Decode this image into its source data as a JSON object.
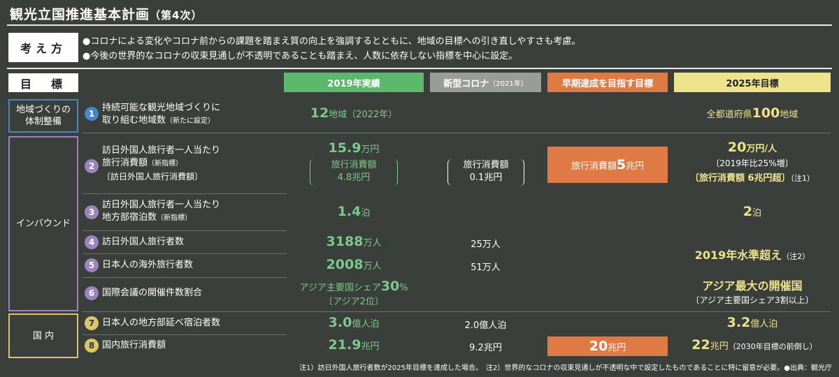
{
  "title": "観光立国推進基本計画",
  "title_suffix": "（第4次）",
  "policy": {
    "label": "考え方",
    "lines": [
      "●コロナによる変化やコロナ前からの課題を踏まえ質の向上を強調するとともに、地域の目標への引き直しやすさも考慮。",
      "●今後の世界的なコロナの収束見通しが不透明であることも踏まえ、人数に依存しない指標を中心に設定。"
    ]
  },
  "goals_label": "目　標",
  "headers": {
    "actual2019": "2019年実績",
    "corona_main": "新型コロナ",
    "corona_sub": "（2021年）",
    "early": "早期達成を目指す目標",
    "target2025": "2025年目標"
  },
  "categories": {
    "chiiki_line1": "地域づくりの",
    "chiiki_line2": "体制整備",
    "inbound": "インバウンド",
    "kokunai": "国 内"
  },
  "rows": {
    "r1": {
      "num": "1",
      "label1": "持続可能な観光地域づくりに",
      "label2": "取り組む地域数",
      "label2_small": "（新たに設定）",
      "v2019_big": "12",
      "v2019_unit": "地域（2022年）",
      "t2025_pre": "全都道府県",
      "t2025_big": "100",
      "t2025_unit": "地域"
    },
    "r2": {
      "num": "2",
      "label1": "訪日外国人旅行者一人当たり",
      "label2": "旅行消費額",
      "label2_small": "（新指標）",
      "label3": "〔訪日外国人旅行消費額〕",
      "v2019_big": "15.9",
      "v2019_unit": "万円",
      "v2019_sub1": "旅行消費額",
      "v2019_sub2": "4.8兆円",
      "corona_sub1": "旅行消費額",
      "corona_sub2": "0.1兆円",
      "early_pre": "旅行消費額",
      "early_big": "5",
      "early_unit": "兆円",
      "t2025_big": "20",
      "t2025_unit": "万円/人",
      "t2025_sub1": "〔2019年比25%増〕",
      "t2025_sub2": "〔旅行消費額 6兆円超〕",
      "t2025_note": "（注1）"
    },
    "r3": {
      "num": "3",
      "label1": "訪日外国人旅行者一人当たり",
      "label2": "地方部宿泊数",
      "label2_small": "（新指標）",
      "v2019_big": "1.4",
      "v2019_unit": "泊",
      "t2025_big": "2",
      "t2025_unit": "泊"
    },
    "r4": {
      "num": "4",
      "label1": "訪日外国人旅行者数",
      "v2019_big": "3188",
      "v2019_unit": "万人",
      "corona": "25万人"
    },
    "r5": {
      "num": "5",
      "label1": "日本人の海外旅行者数",
      "v2019_big": "2008",
      "v2019_unit": "万人",
      "corona": "51万人"
    },
    "r45_target": {
      "text": "2019年水準超え",
      "note": "（注2）"
    },
    "r6": {
      "num": "6",
      "label1": "国際会議の開催件数割合",
      "v2019_pre": "アジア主要国シェア",
      "v2019_big": "30",
      "v2019_unit": "%",
      "v2019_sub": "〔アジア2位〕",
      "t2025_main": "アジア最大の開催国",
      "t2025_sub": "〔アジア主要国シェア3割以上〕"
    },
    "r7": {
      "num": "7",
      "label1": "日本人の地方部延べ宿泊者数",
      "v2019_big": "3.0",
      "v2019_unit": "億人泊",
      "corona": "2.0億人泊",
      "t2025_big": "3.2",
      "t2025_unit": "億人泊"
    },
    "r8": {
      "num": "8",
      "label1": "国内旅行消費額",
      "v2019_big": "21.9",
      "v2019_unit": "兆円",
      "corona": "9.2兆円",
      "early_big": "20",
      "early_unit": "兆円",
      "t2025_big": "22",
      "t2025_unit": "兆円",
      "t2025_note": "（2030年目標の前倒し）"
    }
  },
  "footer": "注1）訪日外国人旅行者数が2025年目標を達成した場合。　注2）世界的なコロナの収束見通しが不透明な中で設定したものであることに特に留意が必要。●出典：観光庁",
  "colors": {
    "background": "#3b3f3b",
    "green_header": "#5bb86c",
    "gray_header": "#9a9c9a",
    "orange": "#e07a45",
    "yellow_header": "#ece38b",
    "green_text": "#7ec98a",
    "yellow_text": "#ece38b",
    "blue_frame": "#4a86c5",
    "purple_frame": "#9b84bd",
    "yellow_frame": "#d9c86a"
  },
  "icons": {
    "numbered_circle": "numbered-circle-badge"
  }
}
